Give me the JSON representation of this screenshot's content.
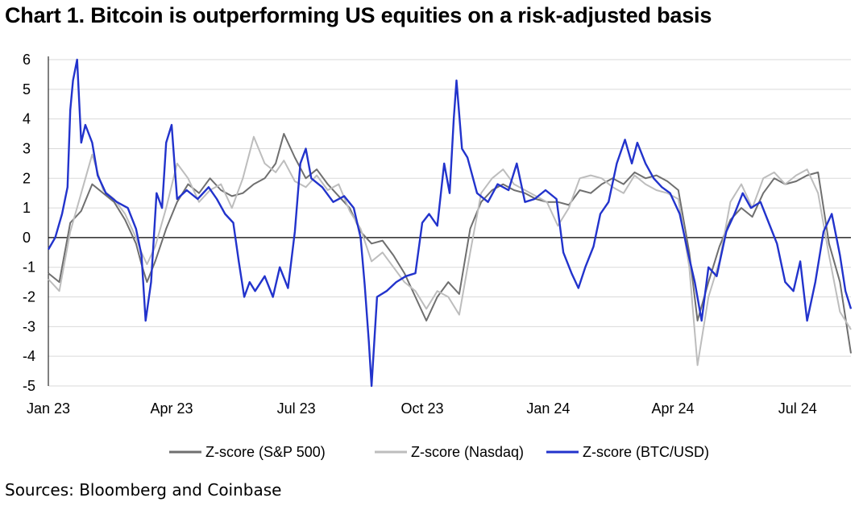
{
  "title": "Chart 1. Bitcoin is outperforming US equities on a risk-adjusted basis",
  "source": "Sources: Bloomberg and Coinbase",
  "chart_data": {
    "type": "line",
    "ylim": [
      -5,
      6
    ],
    "y_ticks": [
      6,
      5,
      4,
      3,
      2,
      1,
      0,
      -1,
      -2,
      -3,
      -4,
      -5
    ],
    "x_ticks": [
      "Jan 23",
      "Apr 23",
      "Jul 23",
      "Oct 23",
      "Jan 24",
      "Apr 24",
      "Jul 24"
    ],
    "x_tick_dates": [
      "2023-01-01",
      "2023-04-01",
      "2023-07-01",
      "2023-10-01",
      "2024-01-01",
      "2024-04-01",
      "2024-07-01"
    ],
    "x_range": [
      "2023-01-01",
      "2024-08-09"
    ],
    "grid": "horizontal",
    "legend_position": "bottom",
    "series": [
      {
        "name": "Z-score (S&P 500)",
        "color": "#6f6f6f",
        "points": [
          [
            "2023-01-01",
            -1.2
          ],
          [
            "2023-01-09",
            -1.5
          ],
          [
            "2023-01-17",
            0.5
          ],
          [
            "2023-01-25",
            0.9
          ],
          [
            "2023-02-02",
            1.8
          ],
          [
            "2023-02-10",
            1.5
          ],
          [
            "2023-02-18",
            1.2
          ],
          [
            "2023-02-26",
            0.6
          ],
          [
            "2023-03-06",
            -0.2
          ],
          [
            "2023-03-10",
            -0.9
          ],
          [
            "2023-03-14",
            -1.5
          ],
          [
            "2023-03-20",
            -0.8
          ],
          [
            "2023-03-28",
            0.3
          ],
          [
            "2023-04-05",
            1.2
          ],
          [
            "2023-04-13",
            1.8
          ],
          [
            "2023-04-21",
            1.5
          ],
          [
            "2023-04-29",
            2.0
          ],
          [
            "2023-05-07",
            1.6
          ],
          [
            "2023-05-15",
            1.4
          ],
          [
            "2023-05-23",
            1.5
          ],
          [
            "2023-05-31",
            1.8
          ],
          [
            "2023-06-08",
            2.0
          ],
          [
            "2023-06-16",
            2.5
          ],
          [
            "2023-06-22",
            3.5
          ],
          [
            "2023-06-30",
            2.7
          ],
          [
            "2023-07-08",
            2.0
          ],
          [
            "2023-07-16",
            2.3
          ],
          [
            "2023-07-24",
            1.8
          ],
          [
            "2023-08-01",
            1.4
          ],
          [
            "2023-08-09",
            1.0
          ],
          [
            "2023-08-17",
            0.2
          ],
          [
            "2023-08-25",
            -0.2
          ],
          [
            "2023-09-02",
            -0.1
          ],
          [
            "2023-09-10",
            -0.6
          ],
          [
            "2023-09-18",
            -1.2
          ],
          [
            "2023-09-26",
            -2.0
          ],
          [
            "2023-10-04",
            -2.8
          ],
          [
            "2023-10-12",
            -2.0
          ],
          [
            "2023-10-20",
            -1.5
          ],
          [
            "2023-10-28",
            -1.9
          ],
          [
            "2023-11-05",
            0.3
          ],
          [
            "2023-11-13",
            1.2
          ],
          [
            "2023-11-21",
            1.6
          ],
          [
            "2023-11-29",
            1.8
          ],
          [
            "2023-12-07",
            1.6
          ],
          [
            "2023-12-15",
            1.5
          ],
          [
            "2023-12-23",
            1.3
          ],
          [
            "2023-12-31",
            1.2
          ],
          [
            "2024-01-08",
            1.2
          ],
          [
            "2024-01-16",
            1.1
          ],
          [
            "2024-01-24",
            1.6
          ],
          [
            "2024-02-01",
            1.5
          ],
          [
            "2024-02-09",
            1.8
          ],
          [
            "2024-02-17",
            2.0
          ],
          [
            "2024-02-25",
            1.8
          ],
          [
            "2024-03-04",
            2.2
          ],
          [
            "2024-03-12",
            2.0
          ],
          [
            "2024-03-20",
            2.1
          ],
          [
            "2024-03-28",
            1.9
          ],
          [
            "2024-04-05",
            1.6
          ],
          [
            "2024-04-13",
            -0.5
          ],
          [
            "2024-04-19",
            -2.8
          ],
          [
            "2024-04-27",
            -1.5
          ],
          [
            "2024-05-05",
            -0.3
          ],
          [
            "2024-05-13",
            0.6
          ],
          [
            "2024-05-21",
            1.0
          ],
          [
            "2024-05-29",
            0.7
          ],
          [
            "2024-06-06",
            1.5
          ],
          [
            "2024-06-14",
            2.0
          ],
          [
            "2024-06-22",
            1.8
          ],
          [
            "2024-06-30",
            1.9
          ],
          [
            "2024-07-08",
            2.1
          ],
          [
            "2024-07-16",
            2.2
          ],
          [
            "2024-07-24",
            -0.2
          ],
          [
            "2024-08-01",
            -1.5
          ],
          [
            "2024-08-09",
            -3.9
          ]
        ]
      },
      {
        "name": "Z-score (Nasdaq)",
        "color": "#bdbdbd",
        "points": [
          [
            "2023-01-01",
            -1.4
          ],
          [
            "2023-01-09",
            -1.8
          ],
          [
            "2023-01-17",
            0.2
          ],
          [
            "2023-01-25",
            1.5
          ],
          [
            "2023-02-02",
            2.8
          ],
          [
            "2023-02-10",
            1.6
          ],
          [
            "2023-02-18",
            1.3
          ],
          [
            "2023-02-26",
            0.8
          ],
          [
            "2023-03-06",
            0.0
          ],
          [
            "2023-03-10",
            -0.5
          ],
          [
            "2023-03-14",
            -0.9
          ],
          [
            "2023-03-20",
            -0.3
          ],
          [
            "2023-03-28",
            1.0
          ],
          [
            "2023-04-05",
            2.5
          ],
          [
            "2023-04-13",
            2.0
          ],
          [
            "2023-04-21",
            1.2
          ],
          [
            "2023-04-29",
            1.6
          ],
          [
            "2023-05-07",
            1.8
          ],
          [
            "2023-05-15",
            1.0
          ],
          [
            "2023-05-23",
            2.0
          ],
          [
            "2023-05-31",
            3.4
          ],
          [
            "2023-06-08",
            2.5
          ],
          [
            "2023-06-16",
            2.2
          ],
          [
            "2023-06-22",
            2.6
          ],
          [
            "2023-06-30",
            1.9
          ],
          [
            "2023-07-08",
            1.7
          ],
          [
            "2023-07-16",
            2.1
          ],
          [
            "2023-07-24",
            1.6
          ],
          [
            "2023-08-01",
            1.8
          ],
          [
            "2023-08-09",
            0.9
          ],
          [
            "2023-08-17",
            0.3
          ],
          [
            "2023-08-25",
            -0.8
          ],
          [
            "2023-09-02",
            -0.5
          ],
          [
            "2023-09-10",
            -1.0
          ],
          [
            "2023-09-18",
            -1.5
          ],
          [
            "2023-09-26",
            -1.8
          ],
          [
            "2023-10-04",
            -2.4
          ],
          [
            "2023-10-12",
            -1.8
          ],
          [
            "2023-10-20",
            -2.0
          ],
          [
            "2023-10-28",
            -2.6
          ],
          [
            "2023-11-05",
            -0.5
          ],
          [
            "2023-11-13",
            1.5
          ],
          [
            "2023-11-21",
            2.0
          ],
          [
            "2023-11-29",
            2.3
          ],
          [
            "2023-12-07",
            1.8
          ],
          [
            "2023-12-15",
            1.6
          ],
          [
            "2023-12-23",
            1.4
          ],
          [
            "2023-12-31",
            1.2
          ],
          [
            "2024-01-08",
            0.4
          ],
          [
            "2024-01-16",
            1.0
          ],
          [
            "2024-01-24",
            2.0
          ],
          [
            "2024-02-01",
            2.1
          ],
          [
            "2024-02-09",
            2.0
          ],
          [
            "2024-02-17",
            1.7
          ],
          [
            "2024-02-25",
            1.5
          ],
          [
            "2024-03-04",
            2.1
          ],
          [
            "2024-03-12",
            1.8
          ],
          [
            "2024-03-20",
            1.6
          ],
          [
            "2024-03-28",
            1.5
          ],
          [
            "2024-04-05",
            1.3
          ],
          [
            "2024-04-13",
            -1.0
          ],
          [
            "2024-04-19",
            -4.3
          ],
          [
            "2024-04-27",
            -2.0
          ],
          [
            "2024-05-05",
            -0.8
          ],
          [
            "2024-05-13",
            1.2
          ],
          [
            "2024-05-21",
            1.8
          ],
          [
            "2024-05-29",
            1.0
          ],
          [
            "2024-06-06",
            2.0
          ],
          [
            "2024-06-14",
            2.2
          ],
          [
            "2024-06-22",
            1.8
          ],
          [
            "2024-06-30",
            2.1
          ],
          [
            "2024-07-08",
            2.3
          ],
          [
            "2024-07-16",
            1.5
          ],
          [
            "2024-07-24",
            -0.6
          ],
          [
            "2024-08-01",
            -2.5
          ],
          [
            "2024-08-09",
            -3.1
          ]
        ]
      },
      {
        "name": "Z-score (BTC/USD)",
        "color": "#2233cc",
        "points": [
          [
            "2023-01-01",
            -0.4
          ],
          [
            "2023-01-06",
            0.0
          ],
          [
            "2023-01-11",
            0.8
          ],
          [
            "2023-01-15",
            1.7
          ],
          [
            "2023-01-17",
            4.3
          ],
          [
            "2023-01-19",
            5.3
          ],
          [
            "2023-01-22",
            6.0
          ],
          [
            "2023-01-25",
            3.2
          ],
          [
            "2023-01-28",
            3.8
          ],
          [
            "2023-02-02",
            3.2
          ],
          [
            "2023-02-06",
            2.1
          ],
          [
            "2023-02-12",
            1.5
          ],
          [
            "2023-02-20",
            1.2
          ],
          [
            "2023-02-28",
            1.0
          ],
          [
            "2023-03-06",
            0.3
          ],
          [
            "2023-03-10",
            -0.6
          ],
          [
            "2023-03-13",
            -2.8
          ],
          [
            "2023-03-17",
            -1.5
          ],
          [
            "2023-03-21",
            1.5
          ],
          [
            "2023-03-25",
            1.0
          ],
          [
            "2023-03-28",
            3.2
          ],
          [
            "2023-04-01",
            3.8
          ],
          [
            "2023-04-05",
            1.3
          ],
          [
            "2023-04-12",
            1.6
          ],
          [
            "2023-04-20",
            1.3
          ],
          [
            "2023-04-28",
            1.7
          ],
          [
            "2023-05-04",
            1.3
          ],
          [
            "2023-05-10",
            0.8
          ],
          [
            "2023-05-16",
            0.5
          ],
          [
            "2023-05-20",
            -0.8
          ],
          [
            "2023-05-24",
            -2.0
          ],
          [
            "2023-05-28",
            -1.5
          ],
          [
            "2023-06-01",
            -1.8
          ],
          [
            "2023-06-08",
            -1.3
          ],
          [
            "2023-06-14",
            -2.0
          ],
          [
            "2023-06-19",
            -1.0
          ],
          [
            "2023-06-25",
            -1.7
          ],
          [
            "2023-06-30",
            0.2
          ],
          [
            "2023-07-04",
            2.5
          ],
          [
            "2023-07-08",
            3.0
          ],
          [
            "2023-07-12",
            2.0
          ],
          [
            "2023-07-20",
            1.7
          ],
          [
            "2023-07-28",
            1.2
          ],
          [
            "2023-08-05",
            1.4
          ],
          [
            "2023-08-12",
            1.0
          ],
          [
            "2023-08-17",
            0.0
          ],
          [
            "2023-08-20",
            -1.6
          ],
          [
            "2023-08-23",
            -3.5
          ],
          [
            "2023-08-25",
            -5.0
          ],
          [
            "2023-08-29",
            -2.0
          ],
          [
            "2023-09-05",
            -1.8
          ],
          [
            "2023-09-12",
            -1.5
          ],
          [
            "2023-09-19",
            -1.3
          ],
          [
            "2023-09-26",
            -1.2
          ],
          [
            "2023-10-01",
            0.5
          ],
          [
            "2023-10-06",
            0.8
          ],
          [
            "2023-10-12",
            0.4
          ],
          [
            "2023-10-17",
            2.5
          ],
          [
            "2023-10-21",
            1.5
          ],
          [
            "2023-10-24",
            4.0
          ],
          [
            "2023-10-26",
            5.3
          ],
          [
            "2023-10-30",
            3.0
          ],
          [
            "2023-11-03",
            2.7
          ],
          [
            "2023-11-10",
            1.5
          ],
          [
            "2023-11-18",
            1.2
          ],
          [
            "2023-11-25",
            1.8
          ],
          [
            "2023-12-03",
            1.6
          ],
          [
            "2023-12-09",
            2.5
          ],
          [
            "2023-12-15",
            1.2
          ],
          [
            "2023-12-22",
            1.3
          ],
          [
            "2023-12-30",
            1.6
          ],
          [
            "2024-01-07",
            1.3
          ],
          [
            "2024-01-12",
            -0.5
          ],
          [
            "2024-01-18",
            -1.2
          ],
          [
            "2024-01-23",
            -1.7
          ],
          [
            "2024-01-28",
            -1.0
          ],
          [
            "2024-02-03",
            -0.3
          ],
          [
            "2024-02-08",
            0.8
          ],
          [
            "2024-02-14",
            1.2
          ],
          [
            "2024-02-20",
            2.5
          ],
          [
            "2024-02-26",
            3.3
          ],
          [
            "2024-03-02",
            2.5
          ],
          [
            "2024-03-06",
            3.2
          ],
          [
            "2024-03-12",
            2.5
          ],
          [
            "2024-03-18",
            2.0
          ],
          [
            "2024-03-24",
            1.7
          ],
          [
            "2024-03-30",
            1.5
          ],
          [
            "2024-04-06",
            0.8
          ],
          [
            "2024-04-12",
            -0.5
          ],
          [
            "2024-04-17",
            -1.5
          ],
          [
            "2024-04-22",
            -2.8
          ],
          [
            "2024-04-27",
            -1.0
          ],
          [
            "2024-05-03",
            -1.3
          ],
          [
            "2024-05-10",
            0.2
          ],
          [
            "2024-05-16",
            0.8
          ],
          [
            "2024-05-22",
            1.5
          ],
          [
            "2024-05-28",
            1.0
          ],
          [
            "2024-06-04",
            1.2
          ],
          [
            "2024-06-10",
            0.5
          ],
          [
            "2024-06-16",
            -0.2
          ],
          [
            "2024-06-22",
            -1.5
          ],
          [
            "2024-06-28",
            -1.8
          ],
          [
            "2024-07-03",
            -0.8
          ],
          [
            "2024-07-08",
            -2.8
          ],
          [
            "2024-07-14",
            -1.5
          ],
          [
            "2024-07-20",
            0.2
          ],
          [
            "2024-07-26",
            0.8
          ],
          [
            "2024-08-01",
            -0.6
          ],
          [
            "2024-08-05",
            -1.8
          ],
          [
            "2024-08-09",
            -2.4
          ]
        ]
      }
    ]
  }
}
